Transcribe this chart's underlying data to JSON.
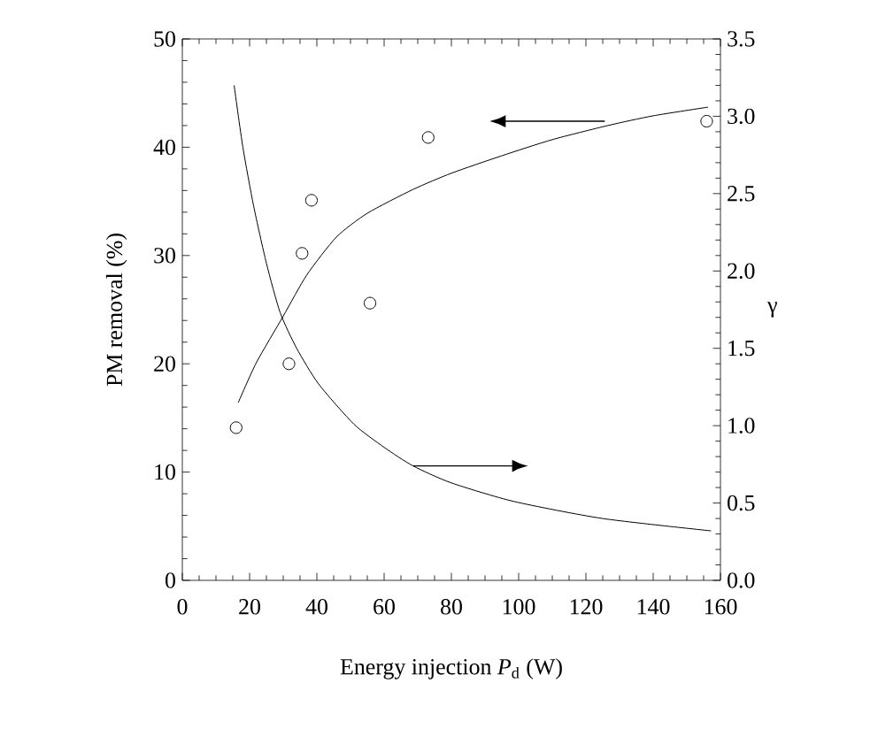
{
  "chart_data": {
    "type": "line",
    "xlabel": "Energy injection *P*$_{d}$ (W)",
    "ylabel": "PM removal (%)",
    "y2label": "γ",
    "xlim": [
      0,
      160
    ],
    "xticks": [
      0,
      20,
      40,
      60,
      80,
      100,
      120,
      140,
      160
    ],
    "ylim": [
      0,
      50
    ],
    "yticks": [
      0,
      10,
      20,
      30,
      40,
      50
    ],
    "y2lim": [
      0,
      3.5
    ],
    "y2ticks": [
      {
        "value": 0,
        "label": "0.0"
      },
      {
        "value": 0.5,
        "label": "0.5"
      },
      {
        "value": 1,
        "label": "1.0"
      },
      {
        "value": 1.5,
        "label": "1.5"
      },
      {
        "value": 2,
        "label": "2.0"
      },
      {
        "value": 2.5,
        "label": "2.5"
      },
      {
        "value": 3,
        "label": "3.0"
      },
      {
        "value": 3.5,
        "label": "3.5"
      }
    ],
    "series": [
      {
        "type": "scatter",
        "marker": "circle",
        "color": "#000000",
        "x": [
          16,
          31.7,
          35.6,
          38.4,
          55.8,
          73.1,
          155.9
        ],
        "values": [
          14.1,
          20.0,
          30.2,
          35.1,
          25.6,
          40.9,
          42.4
        ]
      },
      {
        "line_style": "solid",
        "color": "#000000",
        "x": [
          16.6,
          22,
          30,
          37,
          45.8,
          55,
          68.6,
          80,
          94.9,
          110,
          126.5,
          140,
          156.3
        ],
        "values": [
          16.4,
          20.1,
          24.4,
          28.2,
          31.7,
          33.9,
          36.1,
          37.6,
          39.2,
          40.7,
          42,
          42.9,
          43.7
        ]
      },
      {
        "line_style": "solid",
        "axis": "y2",
        "color": "#000000",
        "x": [
          15.4,
          18,
          21.2,
          25,
          29.1,
          34,
          40.5,
          51,
          60,
          68.6,
          80,
          98.6,
          124.9,
          157.2
        ],
        "values": [
          3.2,
          2.8,
          2.42,
          2.05,
          1.73,
          1.5,
          1.27,
          1.01,
          0.86,
          0.74,
          0.63,
          0.51,
          0.4,
          0.32
        ]
      }
    ]
  }
}
